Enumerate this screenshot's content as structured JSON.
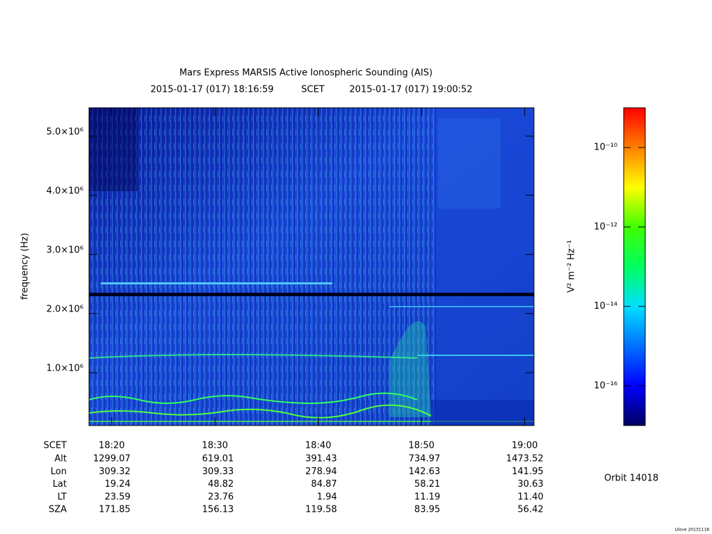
{
  "chart_data": {
    "type": "spectrogram",
    "title": "Mars Express MARSIS Active Ionospheric Sounding (AIS)",
    "start_time": "2015-01-17 (017) 18:16:59",
    "time_system": "SCET",
    "end_time": "2015-01-17 (017) 19:00:52",
    "y_label": "frequency (Hz)",
    "ylim": [
      106000,
      5480000
    ],
    "yticks": [
      {
        "value": 1000000,
        "label": "1.0×10⁶"
      },
      {
        "value": 2000000,
        "label": "2.0×10⁶"
      },
      {
        "value": 3000000,
        "label": "3.0×10⁶"
      },
      {
        "value": 4000000,
        "label": "4.0×10⁶"
      },
      {
        "value": 5000000,
        "label": "5.0×10⁶"
      }
    ],
    "xlim": [
      17.8,
      60.9
    ],
    "xticks": [
      {
        "value": 20,
        "label": "18:20"
      },
      {
        "value": 30,
        "label": "18:30"
      },
      {
        "value": 40,
        "label": "18:40"
      },
      {
        "value": 50,
        "label": "18:50"
      },
      {
        "value": 60,
        "label": "19:00"
      }
    ],
    "colorbar": {
      "label": "V² m⁻² Hz⁻¹",
      "log_scale": true,
      "clim": [
        1e-17,
        1e-09
      ],
      "ticks": [
        {
          "value": 1e-10,
          "label": "10⁻¹⁰"
        },
        {
          "value": 1e-12,
          "label": "10⁻¹²"
        },
        {
          "value": 1e-14,
          "label": "10⁻¹⁴"
        },
        {
          "value": 1e-16,
          "label": "10⁻¹⁶"
        }
      ],
      "colormap": [
        "#000060",
        "#0000ff",
        "#0070ff",
        "#00e0ff",
        "#00ff60",
        "#40ff00",
        "#ffff00",
        "#ff8000",
        "#ff0000"
      ]
    },
    "ephemeris": {
      "time_row_label": "SCET",
      "row_labels": [
        "Alt",
        "Lon",
        "Lat",
        "LT",
        "SZA"
      ],
      "rows": [
        [
          "1299.07",
          "619.01",
          "391.43",
          "734.97",
          "1473.52"
        ],
        [
          "309.32",
          "309.33",
          "278.94",
          "142.63",
          "141.95"
        ],
        [
          "19.24",
          "48.82",
          "84.87",
          "58.21",
          "30.63"
        ],
        [
          "23.59",
          "23.76",
          "1.94",
          "11.19",
          "11.40"
        ],
        [
          "171.85",
          "156.13",
          "119.58",
          "83.95",
          "56.42"
        ]
      ]
    },
    "orbit": "Orbit 14018",
    "footer": "Ulove 20131118"
  }
}
